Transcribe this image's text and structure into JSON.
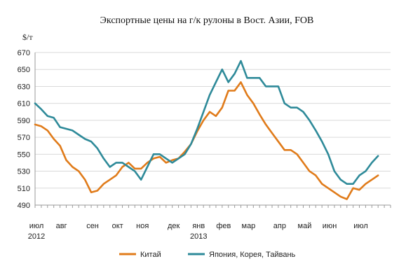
{
  "chart_data": {
    "type": "line",
    "title": "Экспортные цены на г/к рулоны в Вост. Азии,  FOB",
    "ylabel": "$/т",
    "xlabel": "",
    "ylim": [
      490,
      670
    ],
    "yticks": [
      490,
      510,
      530,
      550,
      570,
      590,
      610,
      630,
      650,
      670
    ],
    "grid": "horizontal",
    "legend_position": "bottom",
    "month_labels": [
      {
        "label": "июл",
        "x": 0
      },
      {
        "label": "авг",
        "x": 4
      },
      {
        "label": "сен",
        "x": 9
      },
      {
        "label": "окт",
        "x": 13
      },
      {
        "label": "ноя",
        "x": 17
      },
      {
        "label": "дек",
        "x": 22
      },
      {
        "label": "янв",
        "x": 26
      },
      {
        "label": "фев",
        "x": 30
      },
      {
        "label": "мар",
        "x": 34
      },
      {
        "label": "апр",
        "x": 39
      },
      {
        "label": "май",
        "x": 43
      },
      {
        "label": "июн",
        "x": 47
      },
      {
        "label": "июл",
        "x": 52
      }
    ],
    "year_labels": [
      {
        "label": "2012",
        "x": 0
      },
      {
        "label": "2013",
        "x": 26
      }
    ],
    "x_max": 57,
    "series": [
      {
        "name": "Китай",
        "color": "#e07b1a",
        "values": [
          585,
          583,
          578,
          568,
          560,
          543,
          535,
          530,
          520,
          505,
          507,
          515,
          520,
          525,
          535,
          540,
          533,
          533,
          540,
          545,
          547,
          540,
          543,
          545,
          553,
          562,
          577,
          590,
          600,
          595,
          605,
          625,
          625,
          635,
          620,
          610,
          597,
          585,
          575,
          565,
          555,
          555,
          550,
          540,
          530,
          525,
          515,
          510,
          505,
          500,
          497,
          510,
          508,
          515,
          520,
          525
        ]
      },
      {
        "name": "Япония, Корея, Тайвань",
        "color": "#2e8a99",
        "values": [
          610,
          603,
          595,
          593,
          582,
          580,
          578,
          573,
          568,
          565,
          557,
          545,
          535,
          540,
          540,
          535,
          530,
          520,
          535,
          550,
          550,
          545,
          540,
          545,
          550,
          562,
          580,
          600,
          620,
          635,
          650,
          635,
          645,
          660,
          640,
          640,
          640,
          630,
          630,
          630,
          610,
          605,
          605,
          600,
          590,
          578,
          565,
          550,
          530,
          520,
          515,
          515,
          525,
          530,
          540,
          548
        ]
      }
    ]
  }
}
